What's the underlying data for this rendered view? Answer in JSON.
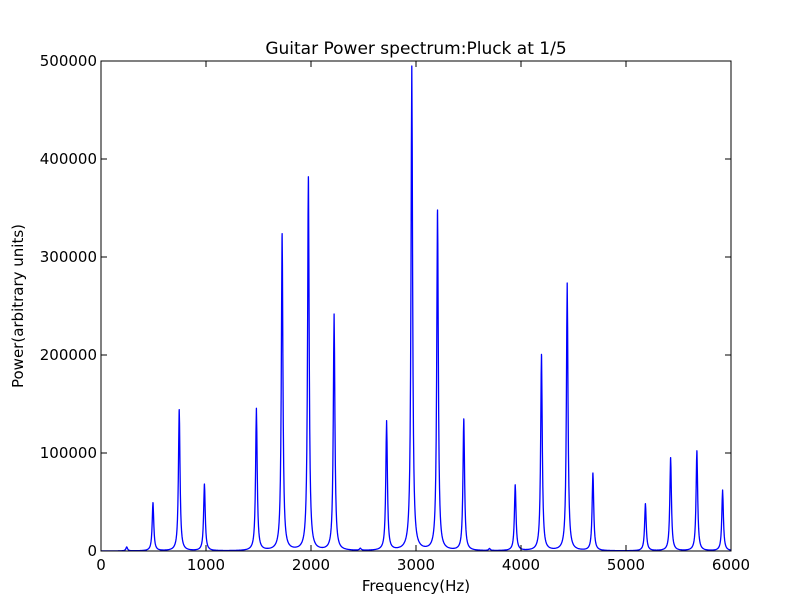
{
  "chart_data": {
    "type": "line",
    "title": "Guitar Power spectrum:Pluck at 1/5",
    "xlabel": "Frequency(Hz)",
    "ylabel": "Power(arbitrary units)",
    "xlim": [
      0,
      6000
    ],
    "ylim": [
      0,
      500000
    ],
    "xticks": [
      0,
      1000,
      2000,
      3000,
      4000,
      5000,
      6000
    ],
    "yticks": [
      0,
      100000,
      200000,
      300000,
      400000,
      500000
    ],
    "grid": false,
    "line_color": "#0000ff",
    "series": [
      {
        "peaks": [
          {
            "x": 245,
            "y": 4000
          },
          {
            "x": 495,
            "y": 49000
          },
          {
            "x": 745,
            "y": 144000
          },
          {
            "x": 985,
            "y": 68000
          },
          {
            "x": 1480,
            "y": 145000
          },
          {
            "x": 1725,
            "y": 323000
          },
          {
            "x": 1975,
            "y": 381000
          },
          {
            "x": 2220,
            "y": 241000
          },
          {
            "x": 2470,
            "y": 2000
          },
          {
            "x": 2720,
            "y": 132000
          },
          {
            "x": 2960,
            "y": 494000
          },
          {
            "x": 3205,
            "y": 347000
          },
          {
            "x": 3455,
            "y": 134000
          },
          {
            "x": 3700,
            "y": 2000
          },
          {
            "x": 3945,
            "y": 67000
          },
          {
            "x": 4195,
            "y": 200000
          },
          {
            "x": 4440,
            "y": 273000
          },
          {
            "x": 4685,
            "y": 79000
          },
          {
            "x": 5185,
            "y": 48000
          },
          {
            "x": 5425,
            "y": 95000
          },
          {
            "x": 5675,
            "y": 102000
          },
          {
            "x": 5920,
            "y": 62000
          }
        ]
      }
    ]
  }
}
